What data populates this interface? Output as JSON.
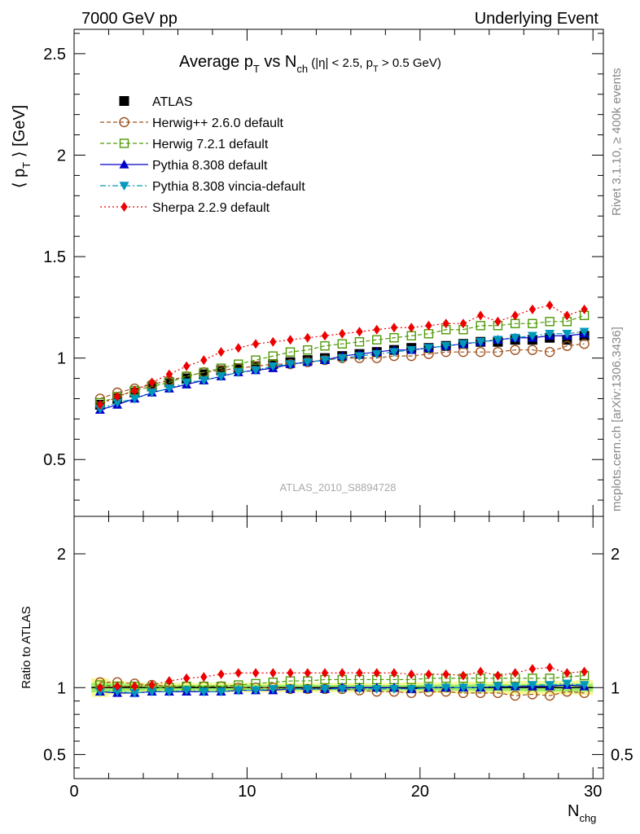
{
  "header": {
    "left": "7000 GeV pp",
    "right": "Underlying Event",
    "side_top": "Rivet 3.1.10, ≥ 400k events",
    "side_bottom": "mcplots.cern.ch [arXiv:1306.3436]",
    "analysis_id": "ATLAS_2010_S8894728"
  },
  "title": {
    "avg_p": "Average p",
    "sub_T": "T",
    "vs_N": " vs N",
    "sub_ch": "ch",
    "cuts_a": " (|η| < 2.5, p",
    "cuts_sub": "T",
    "cuts_b": " > 0.5 GeV)"
  },
  "axes": {
    "ylabel_main": "⟨ p",
    "ylabel_main_sub": "T",
    "ylabel_main_rest": " ⟩ [GeV]",
    "ylabel_ratio": "Ratio to ATLAS",
    "xlabel": "N",
    "xlabel_sub": "chg"
  },
  "chart_data": [
    {
      "type": "scatter",
      "panel": "main",
      "title": "Average pT vs Nch (|η| < 2.5, pT > 0.5 GeV)",
      "xlabel": "Nchg",
      "ylabel": "⟨ pT ⟩ [GeV]",
      "xlim": [
        0,
        30.6
      ],
      "ylim": [
        0.22,
        2.62
      ],
      "xticks": [
        "0",
        "10",
        "20",
        "30"
      ],
      "yticks": [
        "0.5",
        "1",
        "1.5",
        "2",
        "2.5"
      ],
      "x": [
        1.5,
        2.5,
        3.5,
        4.5,
        5.5,
        6.5,
        7.5,
        8.5,
        9.5,
        10.5,
        11.5,
        12.5,
        13.5,
        14.5,
        15.5,
        16.5,
        17.5,
        18.5,
        19.5,
        20.5,
        21.5,
        22.5,
        23.5,
        24.5,
        25.5,
        26.5,
        27.5,
        28.5,
        29.5
      ],
      "legend_position": "top-left",
      "series": [
        {
          "name": "ATLAS",
          "color": "#000000",
          "marker": "square-filled",
          "line": "none",
          "values": [
            0.77,
            0.8,
            0.83,
            0.86,
            0.88,
            0.9,
            0.92,
            0.94,
            0.95,
            0.96,
            0.97,
            0.98,
            0.99,
            1.0,
            1.01,
            1.02,
            1.03,
            1.04,
            1.05,
            1.05,
            1.06,
            1.07,
            1.08,
            1.08,
            1.09,
            1.09,
            1.1,
            1.09,
            1.11
          ]
        },
        {
          "name": "Herwig++ 2.6.0 default",
          "color": "#a0521d",
          "marker": "circle-open",
          "line": "dashed",
          "values": [
            0.8,
            0.83,
            0.85,
            0.87,
            0.89,
            0.91,
            0.93,
            0.94,
            0.95,
            0.96,
            0.97,
            0.97,
            0.98,
            0.99,
            1.0,
            1.0,
            1.0,
            1.01,
            1.01,
            1.02,
            1.03,
            1.03,
            1.03,
            1.03,
            1.04,
            1.04,
            1.03,
            1.06,
            1.07
          ]
        },
        {
          "name": "Herwig 7.2.1 default",
          "color": "#4e9a06",
          "marker": "square-open",
          "line": "dashed",
          "values": [
            0.78,
            0.81,
            0.84,
            0.86,
            0.88,
            0.91,
            0.93,
            0.95,
            0.97,
            0.99,
            1.01,
            1.03,
            1.04,
            1.06,
            1.07,
            1.08,
            1.09,
            1.1,
            1.11,
            1.12,
            1.14,
            1.14,
            1.16,
            1.16,
            1.17,
            1.17,
            1.18,
            1.18,
            1.21
          ]
        },
        {
          "name": "Pythia 8.308 default",
          "color": "#0000cc",
          "marker": "triangle-up-filled",
          "line": "solid",
          "values": [
            0.745,
            0.77,
            0.8,
            0.83,
            0.85,
            0.87,
            0.89,
            0.91,
            0.93,
            0.94,
            0.95,
            0.97,
            0.98,
            0.99,
            1.01,
            1.02,
            1.03,
            1.04,
            1.04,
            1.05,
            1.06,
            1.07,
            1.08,
            1.09,
            1.1,
            1.1,
            1.11,
            1.11,
            1.12
          ]
        },
        {
          "name": "Pythia 8.308 vincia-default",
          "color": "#0099bb",
          "marker": "triangle-down-filled",
          "line": "dashdot",
          "values": [
            0.75,
            0.78,
            0.8,
            0.83,
            0.85,
            0.88,
            0.89,
            0.91,
            0.93,
            0.94,
            0.96,
            0.97,
            0.98,
            0.99,
            1.0,
            1.01,
            1.02,
            1.03,
            1.04,
            1.05,
            1.06,
            1.07,
            1.08,
            1.09,
            1.1,
            1.11,
            1.12,
            1.12,
            1.13
          ]
        },
        {
          "name": "Sherpa 2.2.9 default",
          "color": "#ee0000",
          "marker": "diamond-filled",
          "line": "dotted",
          "values": [
            0.77,
            0.81,
            0.84,
            0.88,
            0.92,
            0.96,
            0.99,
            1.03,
            1.05,
            1.07,
            1.08,
            1.09,
            1.1,
            1.11,
            1.12,
            1.13,
            1.14,
            1.15,
            1.15,
            1.16,
            1.17,
            1.17,
            1.21,
            1.18,
            1.21,
            1.24,
            1.26,
            1.21,
            1.24
          ]
        }
      ]
    },
    {
      "type": "scatter",
      "panel": "ratio",
      "ylabel": "Ratio to ATLAS",
      "xlabel": "Nchg",
      "xlim": [
        0,
        30.6
      ],
      "ylim": [
        0.32,
        2.28
      ],
      "xticks": [
        "0",
        "10",
        "20",
        "30"
      ],
      "yticks": [
        "0.5",
        "1",
        "2"
      ],
      "x": [
        1.5,
        2.5,
        3.5,
        4.5,
        5.5,
        6.5,
        7.5,
        8.5,
        9.5,
        10.5,
        11.5,
        12.5,
        13.5,
        14.5,
        15.5,
        16.5,
        17.5,
        18.5,
        19.5,
        20.5,
        21.5,
        22.5,
        23.5,
        24.5,
        25.5,
        26.5,
        27.5,
        28.5,
        29.5
      ],
      "band": {
        "inner_color": "#9bee6a",
        "outer_color": "#f7f798",
        "inner_half_width": [
          0.035,
          0.03,
          0.025,
          0.022,
          0.02,
          0.02,
          0.02,
          0.02,
          0.02,
          0.02,
          0.02,
          0.02,
          0.02,
          0.02,
          0.02,
          0.02,
          0.02,
          0.02,
          0.02,
          0.02,
          0.022,
          0.022,
          0.025,
          0.025,
          0.025,
          0.028,
          0.028,
          0.03,
          0.03
        ],
        "outer_half_width": [
          0.07,
          0.05,
          0.04,
          0.035,
          0.035,
          0.035,
          0.035,
          0.035,
          0.035,
          0.035,
          0.035,
          0.035,
          0.035,
          0.035,
          0.035,
          0.035,
          0.035,
          0.035,
          0.04,
          0.04,
          0.04,
          0.045,
          0.045,
          0.045,
          0.05,
          0.05,
          0.05,
          0.05,
          0.055
        ]
      },
      "series": [
        {
          "name": "Herwig++ 2.6.0 default",
          "values": [
            1.04,
            1.04,
            1.03,
            1.02,
            1.01,
            1.01,
            1.01,
            1.01,
            1.0,
            1.0,
            1.0,
            0.99,
            0.99,
            0.99,
            0.99,
            0.98,
            0.97,
            0.97,
            0.96,
            0.97,
            0.97,
            0.96,
            0.96,
            0.96,
            0.94,
            0.95,
            0.94,
            0.97,
            0.96
          ]
        },
        {
          "name": "Herwig 7.2.1 default",
          "values": [
            1.02,
            1.01,
            1.01,
            1.0,
            1.0,
            1.01,
            1.01,
            1.01,
            1.02,
            1.03,
            1.04,
            1.05,
            1.05,
            1.06,
            1.06,
            1.06,
            1.06,
            1.06,
            1.06,
            1.07,
            1.07,
            1.07,
            1.07,
            1.07,
            1.07,
            1.07,
            1.07,
            1.08,
            1.09
          ]
        },
        {
          "name": "Pythia 8.308 default",
          "values": [
            0.97,
            0.96,
            0.96,
            0.97,
            0.97,
            0.97,
            0.97,
            0.97,
            0.98,
            0.98,
            0.98,
            0.99,
            0.99,
            0.99,
            1.0,
            1.0,
            1.0,
            1.0,
            0.99,
            1.0,
            1.0,
            1.0,
            1.0,
            1.01,
            1.01,
            1.01,
            1.01,
            1.02,
            1.01
          ]
        },
        {
          "name": "Pythia 8.308 vincia-default",
          "values": [
            0.97,
            0.97,
            0.96,
            0.97,
            0.97,
            0.98,
            0.97,
            0.97,
            0.98,
            0.98,
            0.99,
            0.99,
            0.99,
            0.99,
            0.99,
            0.99,
            0.99,
            0.99,
            0.99,
            1.0,
            1.0,
            1.0,
            1.0,
            1.01,
            1.01,
            1.02,
            1.02,
            1.03,
            1.02
          ]
        },
        {
          "name": "Sherpa 2.2.9 default",
          "values": [
            1.0,
            1.01,
            1.01,
            1.02,
            1.05,
            1.07,
            1.08,
            1.1,
            1.11,
            1.11,
            1.11,
            1.11,
            1.11,
            1.11,
            1.11,
            1.11,
            1.11,
            1.11,
            1.1,
            1.1,
            1.1,
            1.09,
            1.12,
            1.09,
            1.11,
            1.14,
            1.15,
            1.11,
            1.12
          ]
        }
      ]
    }
  ]
}
